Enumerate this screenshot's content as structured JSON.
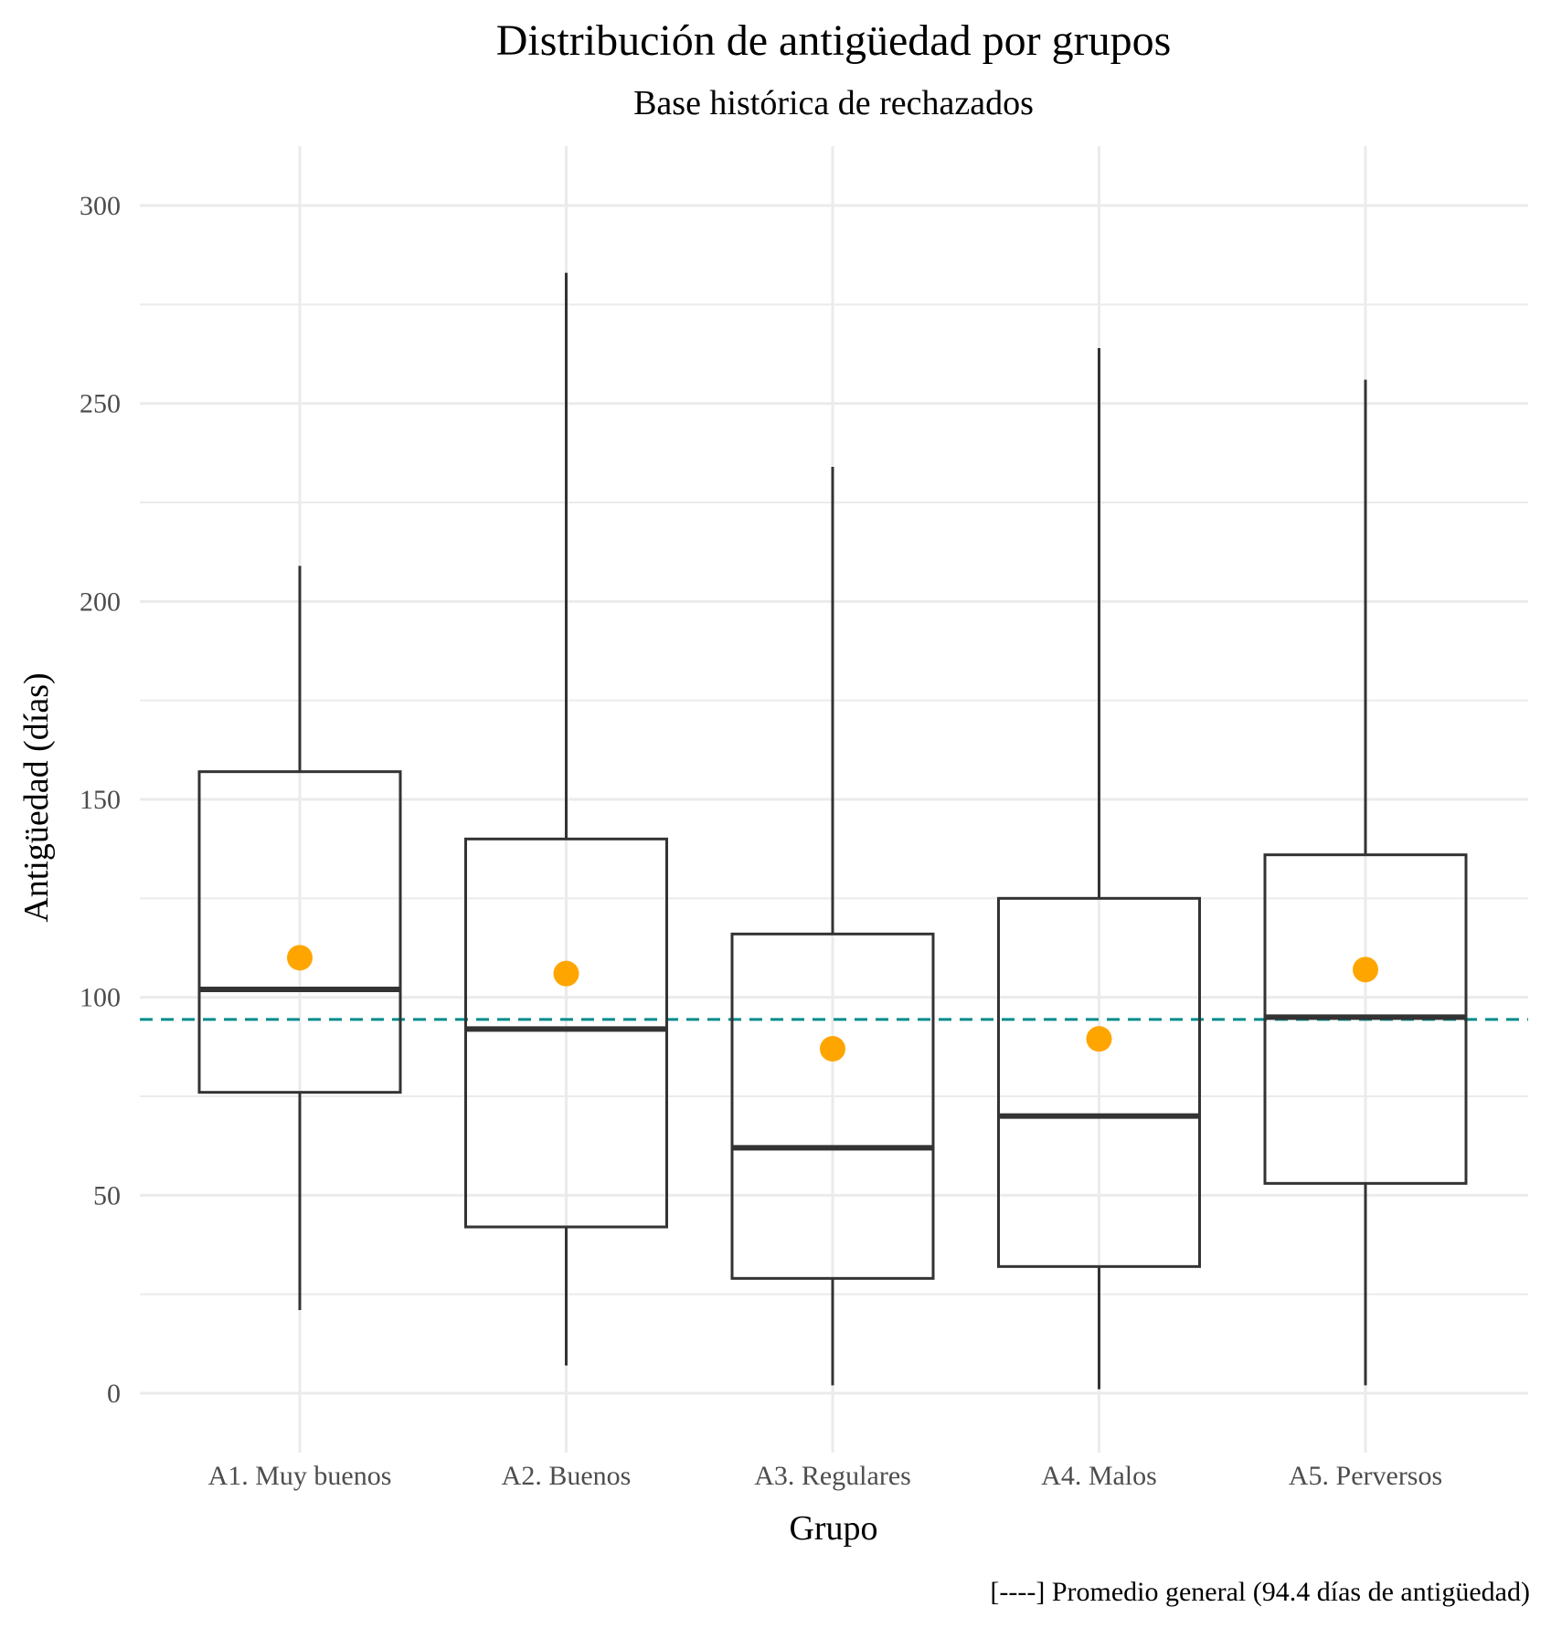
{
  "chart_data": {
    "type": "boxplot",
    "title": "Distribución de antigüedad por grupos",
    "subtitle": "Base histórica de rechazados",
    "xlabel": "Grupo",
    "ylabel": "Antigüedad (días)",
    "caption": "[----] Promedio general (94.4 días de antigüedad)",
    "ylim": [
      -15,
      315
    ],
    "yticks": [
      0,
      50,
      100,
      150,
      200,
      250,
      300
    ],
    "grid": true,
    "categories": [
      "A1. Muy buenos",
      "A2. Buenos",
      "A3. Regulares",
      "A4. Malos",
      "A5. Perversos"
    ],
    "boxes": [
      {
        "whisker_low": 21,
        "q1": 76,
        "median": 102,
        "q3": 157,
        "whisker_high": 209,
        "mean": 110
      },
      {
        "whisker_low": 7,
        "q1": 42,
        "median": 92,
        "q3": 140,
        "whisker_high": 283,
        "mean": 106
      },
      {
        "whisker_low": 2,
        "q1": 29,
        "median": 62,
        "q3": 116,
        "whisker_high": 234,
        "mean": 87
      },
      {
        "whisker_low": 1,
        "q1": 32,
        "median": 70,
        "q3": 125,
        "whisker_high": 264,
        "mean": 89.5
      },
      {
        "whisker_low": 2,
        "q1": 53,
        "median": 95,
        "q3": 136,
        "whisker_high": 256,
        "mean": 107
      }
    ],
    "reference_line": {
      "value": 94.4,
      "style": "dashed"
    },
    "colors": {
      "mean_point": "#FFA500",
      "reference_line": "#008B8B",
      "box": "#333333",
      "grid": "#EBEBEB"
    }
  }
}
